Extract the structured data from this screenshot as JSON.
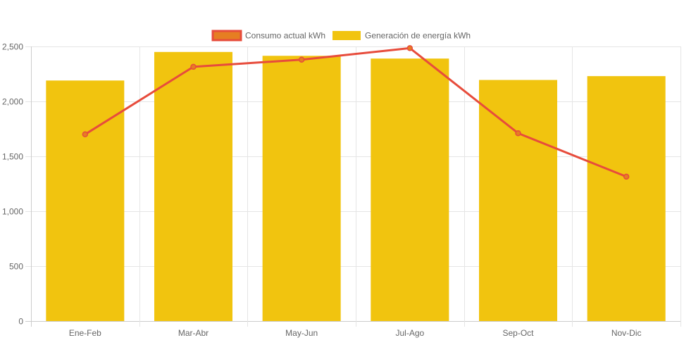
{
  "chart_data": {
    "type": "bar",
    "categories": [
      "Ene-Feb",
      "Mar-Abr",
      "May-Jun",
      "Jul-Ago",
      "Sep-Oct",
      "Nov-Dic"
    ],
    "series": [
      {
        "name": "Consumo actual kWh",
        "type": "line",
        "values": [
          1700,
          2315,
          2380,
          2485,
          1710,
          1315
        ]
      },
      {
        "name": "Generación de energía kWh",
        "type": "bar",
        "values": [
          2190,
          2450,
          2415,
          2390,
          2195,
          2230
        ]
      }
    ],
    "ylim": [
      0,
      2500
    ],
    "yticks": [
      0,
      500,
      1000,
      1500,
      2000,
      2500
    ],
    "ytick_labels": [
      "0",
      "500",
      "1,000",
      "1,500",
      "2,000",
      "2,500"
    ],
    "grid": true,
    "legend_position": "top",
    "colors": {
      "bar": "#f1c40f",
      "line": "#e74c3c",
      "legend_line_fill": "#e67e22",
      "grid": "#e5e5e5",
      "axis_text": "#666666"
    }
  }
}
